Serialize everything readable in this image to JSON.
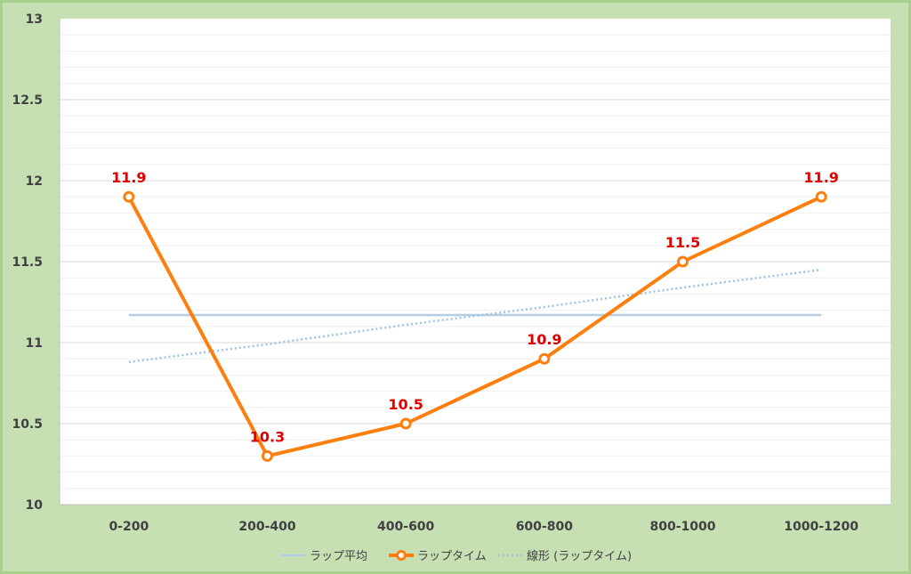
{
  "chart_data": {
    "type": "line",
    "categories": [
      "0-200",
      "200-400",
      "400-600",
      "600-800",
      "800-1000",
      "1000-1200"
    ],
    "ylim": [
      10,
      13
    ],
    "yticks": [
      "10",
      "10.5",
      "11",
      "11.5",
      "12",
      "12.5",
      "13"
    ],
    "grid": true,
    "legend_position": "bottom",
    "series": [
      {
        "name": "ラップ平均",
        "style": "line",
        "color": "#b4cde0",
        "values": [
          11.17,
          11.17,
          11.17,
          11.17,
          11.17,
          11.17
        ]
      },
      {
        "name": "ラップタイム",
        "style": "line-markers",
        "color": "#ff7f0e",
        "values": [
          11.9,
          10.3,
          10.5,
          10.9,
          11.5,
          11.9
        ],
        "data_labels": [
          "11.9",
          "10.3",
          "10.5",
          "10.9",
          "11.5",
          "11.9"
        ]
      },
      {
        "name": "線形 (ラップタイム)",
        "style": "dotted",
        "color": "#9dc3e6",
        "values": [
          10.88,
          10.99,
          11.11,
          11.22,
          11.34,
          11.45
        ]
      }
    ]
  }
}
